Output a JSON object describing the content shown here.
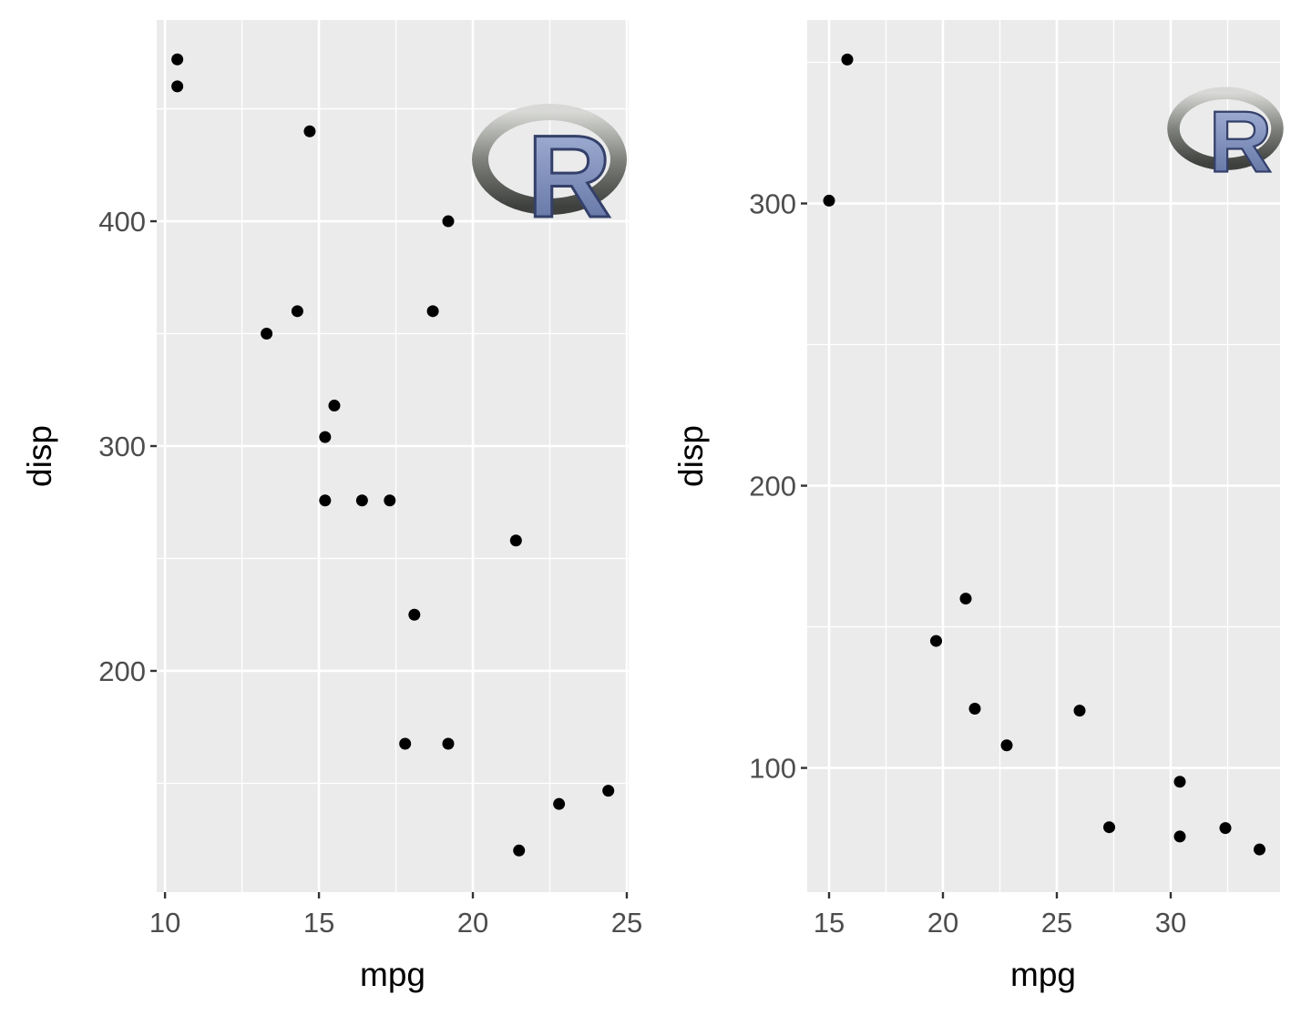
{
  "chart_data": [
    {
      "type": "scatter",
      "title": "",
      "xlabel": "mpg",
      "ylabel": "disp",
      "xlim": [
        9.73,
        25.06
      ],
      "ylim": [
        101.6,
        489.5
      ],
      "xticks": [
        10,
        15,
        20,
        25
      ],
      "yticks": [
        200,
        300,
        400
      ],
      "xminor": [
        12.5,
        17.5,
        22.5
      ],
      "yminor": [
        150,
        250,
        350,
        450
      ],
      "grid": true,
      "logo_text": "R",
      "points": [
        {
          "x": 10.4,
          "y": 472
        },
        {
          "x": 10.4,
          "y": 460
        },
        {
          "x": 14.7,
          "y": 440
        },
        {
          "x": 19.2,
          "y": 400
        },
        {
          "x": 14.3,
          "y": 360
        },
        {
          "x": 18.7,
          "y": 360
        },
        {
          "x": 13.3,
          "y": 350
        },
        {
          "x": 15.5,
          "y": 318
        },
        {
          "x": 15.2,
          "y": 304
        },
        {
          "x": 15.2,
          "y": 275.8
        },
        {
          "x": 16.4,
          "y": 275.8
        },
        {
          "x": 17.3,
          "y": 275.8
        },
        {
          "x": 21.4,
          "y": 258
        },
        {
          "x": 18.1,
          "y": 225
        },
        {
          "x": 17.8,
          "y": 167.6
        },
        {
          "x": 19.2,
          "y": 167.6
        },
        {
          "x": 22.8,
          "y": 140.8
        },
        {
          "x": 24.4,
          "y": 146.7
        },
        {
          "x": 21.5,
          "y": 120.1
        }
      ]
    },
    {
      "type": "scatter",
      "title": "",
      "xlabel": "mpg",
      "ylabel": "disp",
      "xlim": [
        14.04,
        34.8
      ],
      "ylim": [
        56,
        365
      ],
      "xticks": [
        15,
        20,
        25,
        30
      ],
      "yticks": [
        100,
        200,
        300
      ],
      "xminor": [
        17.5,
        22.5,
        27.5,
        32.5
      ],
      "yminor": [
        150,
        250,
        350
      ],
      "grid": true,
      "logo_text": "R",
      "points": [
        {
          "x": 15.8,
          "y": 351
        },
        {
          "x": 15.0,
          "y": 301
        },
        {
          "x": 21.0,
          "y": 160
        },
        {
          "x": 19.7,
          "y": 145
        },
        {
          "x": 21.4,
          "y": 121
        },
        {
          "x": 22.8,
          "y": 108
        },
        {
          "x": 26.0,
          "y": 120.3
        },
        {
          "x": 27.3,
          "y": 79
        },
        {
          "x": 30.4,
          "y": 95.1
        },
        {
          "x": 30.4,
          "y": 75.7
        },
        {
          "x": 32.4,
          "y": 78.7
        },
        {
          "x": 33.9,
          "y": 71.1
        }
      ]
    }
  ]
}
